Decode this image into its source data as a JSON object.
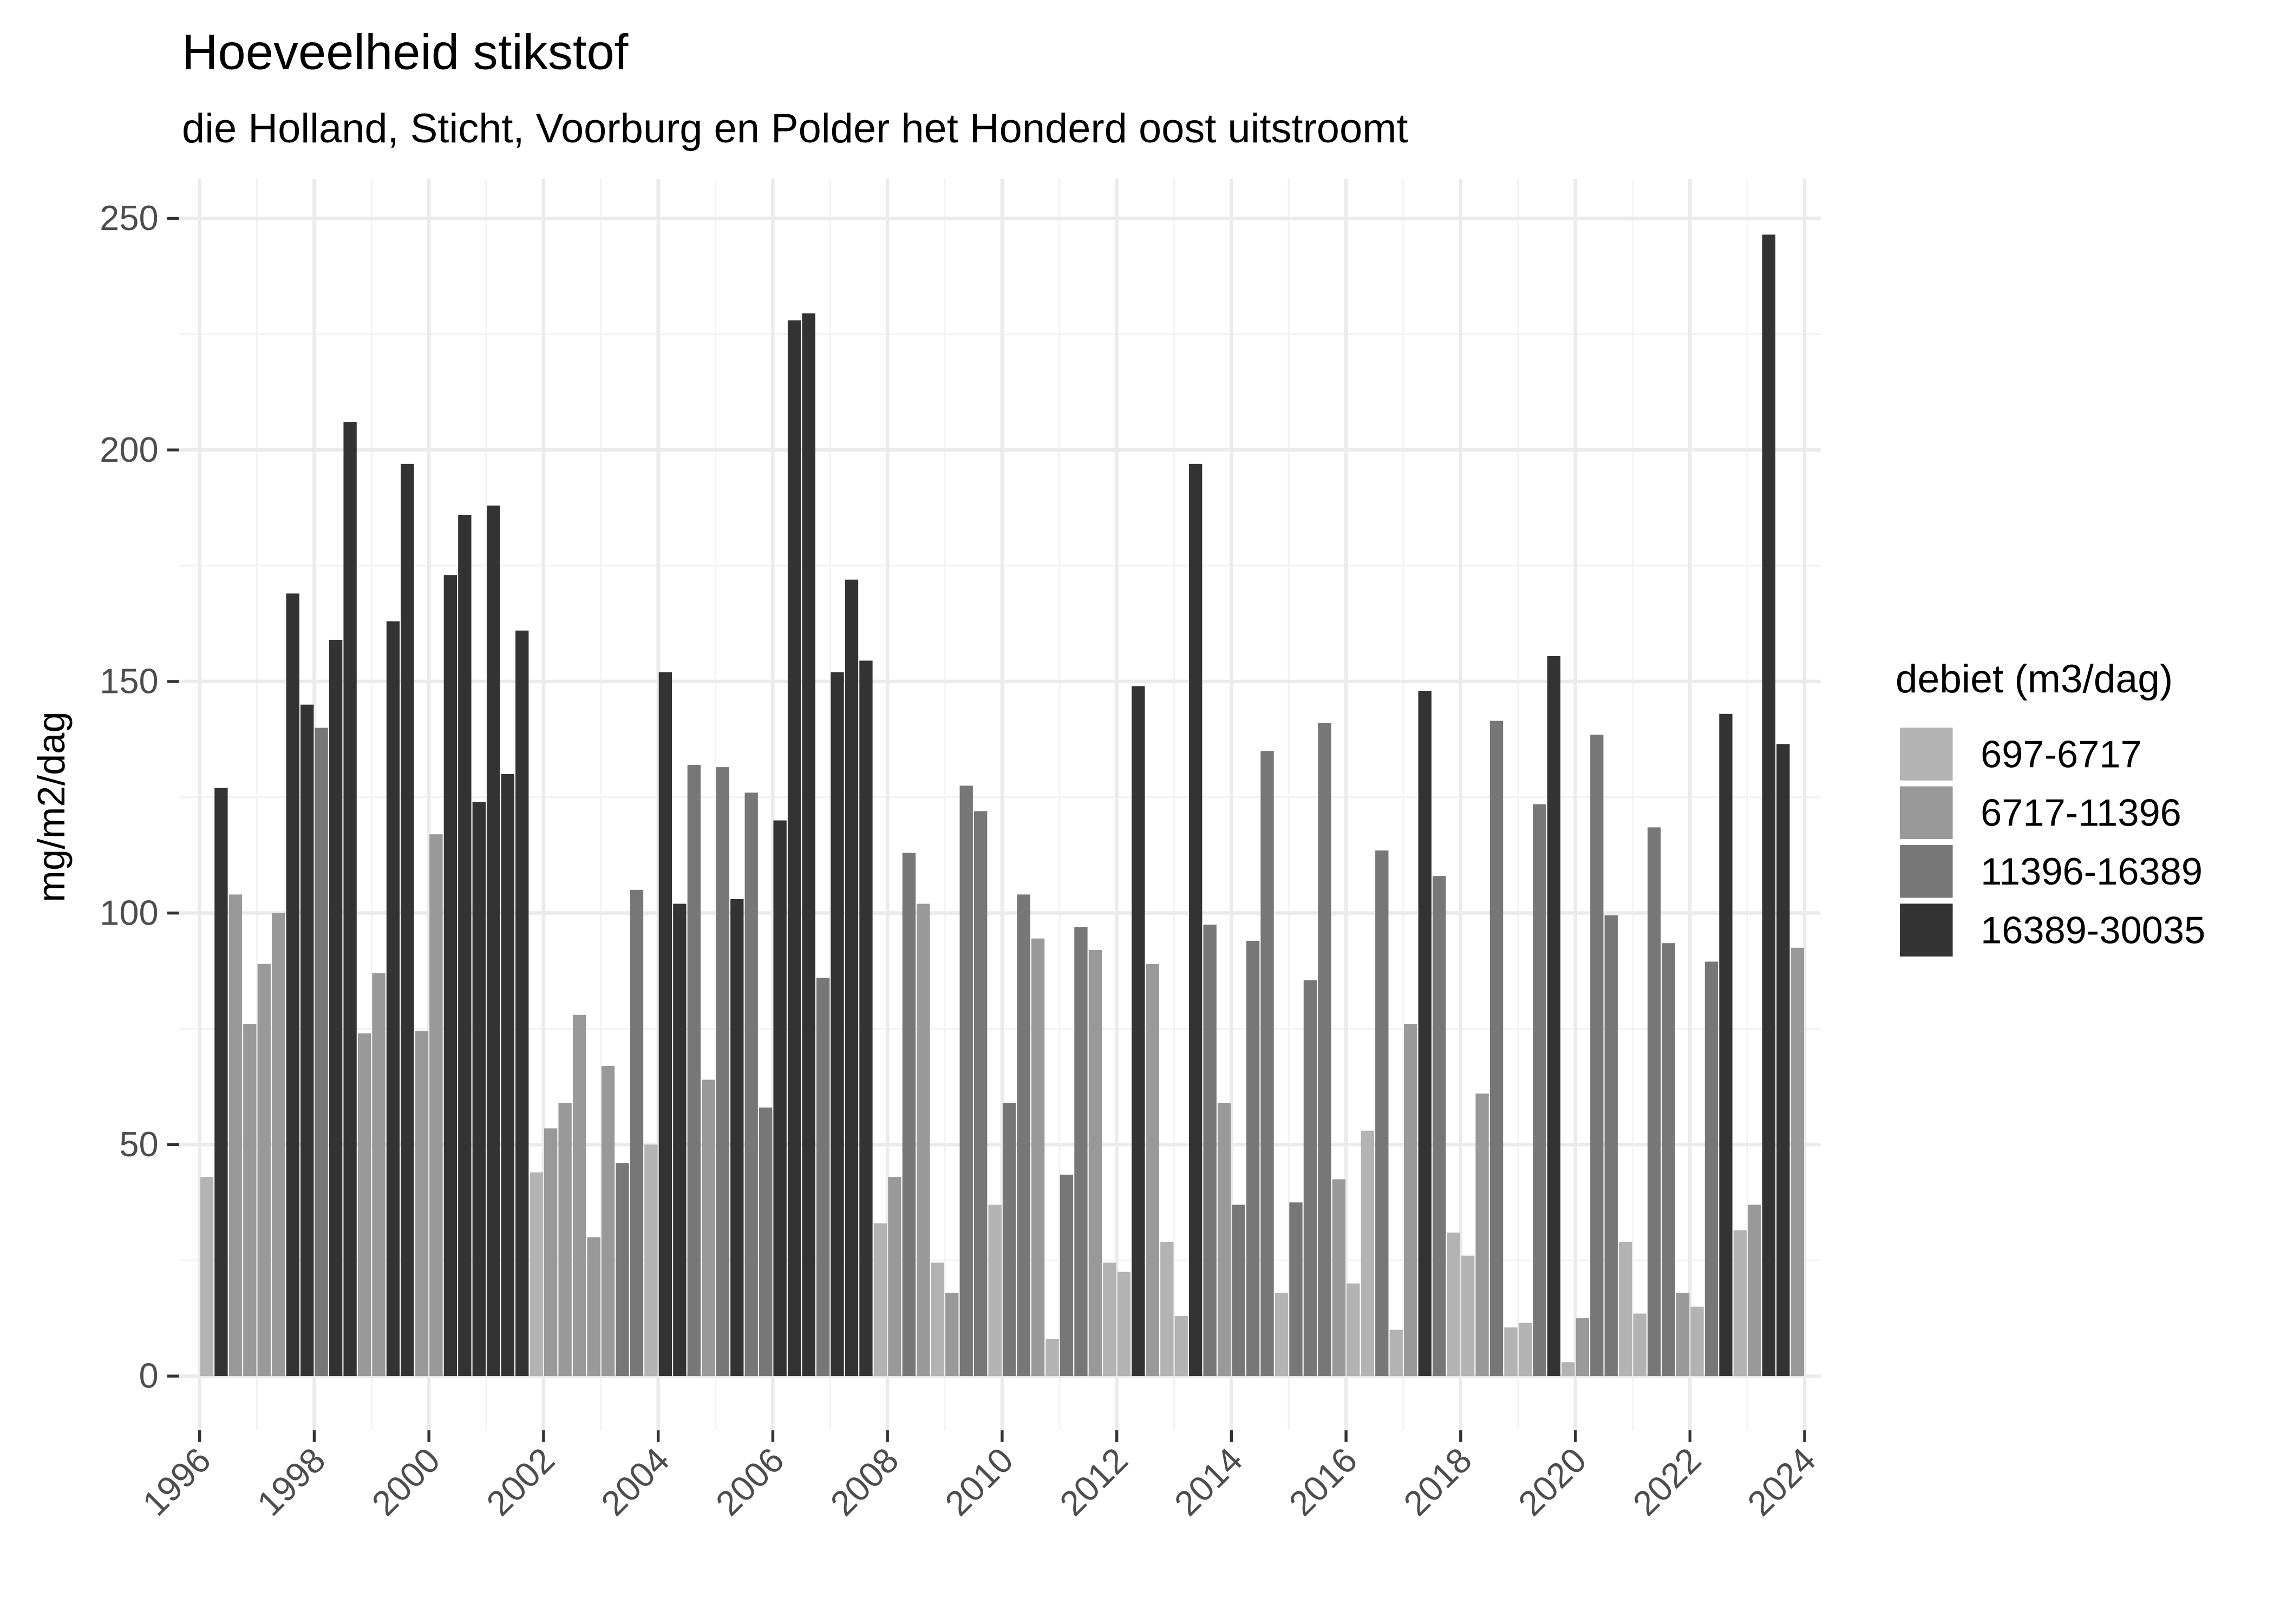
{
  "chart_data": {
    "type": "bar",
    "title": "Hoeveelheid stikstof",
    "subtitle": "die Holland, Sticht, Voorburg en Polder het Honderd oost uitstroomt",
    "y_label": "mg/m2/dag",
    "legend_title": "debiet (m3/dag)",
    "legend_position": "right",
    "grid": true,
    "xlim": [
      1995.64,
      2024.28
    ],
    "xticks": [
      1996,
      1998,
      2000,
      2002,
      2004,
      2006,
      2008,
      2010,
      2012,
      2014,
      2016,
      2018,
      2020,
      2022,
      2024
    ],
    "ylim": [
      -11.7,
      258.5
    ],
    "yticks": [
      0,
      50,
      100,
      150,
      200,
      250
    ],
    "series": [
      {
        "name": "697-6717",
        "color": "#b3b3b3",
        "x": [
          1996.125,
          2001.875,
          2003.875,
          2007.875,
          2008.875,
          2009.875,
          2010.875,
          2011.875,
          2012.125,
          2012.875,
          2013.125,
          2014.875,
          2016.125,
          2016.375,
          2016.875,
          2017.875,
          2018.125,
          2018.875,
          2019.125,
          2019.875,
          2020.875,
          2021.125,
          2022.125,
          2022.875
        ],
        "values": [
          43,
          44,
          50,
          33,
          24.5,
          37,
          8,
          24.5,
          22.5,
          29,
          13,
          18,
          20,
          53,
          10,
          31,
          26,
          10.5,
          11.5,
          3,
          29,
          13.5,
          15,
          31.5
        ]
      },
      {
        "name": "6717-11396",
        "color": "#999999",
        "x": [
          1996.625,
          1996.875,
          1997.125,
          1997.375,
          1998.875,
          1999.125,
          1999.875,
          2000.125,
          2002.125,
          2002.375,
          2002.625,
          2002.875,
          2003.125,
          2004.875,
          2008.125,
          2008.625,
          2009.125,
          2010.625,
          2011.625,
          2012.625,
          2013.875,
          2015.875,
          2017.125,
          2018.375,
          2020.125,
          2021.875,
          2023.125,
          2023.875
        ],
        "values": [
          104,
          76,
          89,
          100,
          74,
          87,
          74.5,
          117,
          53.5,
          59,
          78,
          30,
          67,
          64,
          43,
          102,
          18,
          94.5,
          92,
          89,
          59,
          42.5,
          76,
          61,
          12.5,
          18,
          37,
          92.5
        ]
      },
      {
        "name": "11396-16389",
        "color": "#777777",
        "x": [
          1998.125,
          2003.375,
          2003.625,
          2004.625,
          2005.125,
          2005.625,
          2005.875,
          2006.875,
          2008.375,
          2009.375,
          2009.625,
          2010.125,
          2010.375,
          2011.125,
          2011.375,
          2013.625,
          2014.125,
          2014.375,
          2014.625,
          2015.125,
          2015.375,
          2015.625,
          2016.625,
          2017.625,
          2018.625,
          2019.375,
          2020.375,
          2020.625,
          2021.375,
          2021.625,
          2022.375
        ],
        "values": [
          140,
          46,
          105,
          132,
          131.5,
          126,
          58,
          86,
          113,
          127.5,
          122,
          59,
          104,
          43.5,
          97,
          97.5,
          37,
          94,
          135,
          37.5,
          85.5,
          141,
          113.5,
          108,
          141.5,
          123.5,
          138.5,
          99.5,
          118.5,
          93.5,
          89.5
        ]
      },
      {
        "name": "16389-30035",
        "color": "#333333",
        "x": [
          1996.375,
          1997.625,
          1997.875,
          1998.375,
          1998.625,
          1999.375,
          1999.625,
          2000.375,
          2000.625,
          2000.875,
          2001.125,
          2001.375,
          2001.625,
          2004.125,
          2004.375,
          2005.375,
          2006.125,
          2006.375,
          2006.625,
          2007.125,
          2007.375,
          2007.625,
          2012.375,
          2013.375,
          2017.375,
          2019.625,
          2022.625,
          2023.375,
          2023.625
        ],
        "values": [
          127,
          169,
          145,
          159,
          206,
          163,
          197,
          173,
          186,
          124,
          188,
          130,
          161,
          152,
          102,
          103,
          120,
          228,
          229.5,
          152,
          172,
          154.5,
          149,
          197,
          148,
          155.5,
          143,
          246.5,
          136.5
        ]
      }
    ]
  }
}
